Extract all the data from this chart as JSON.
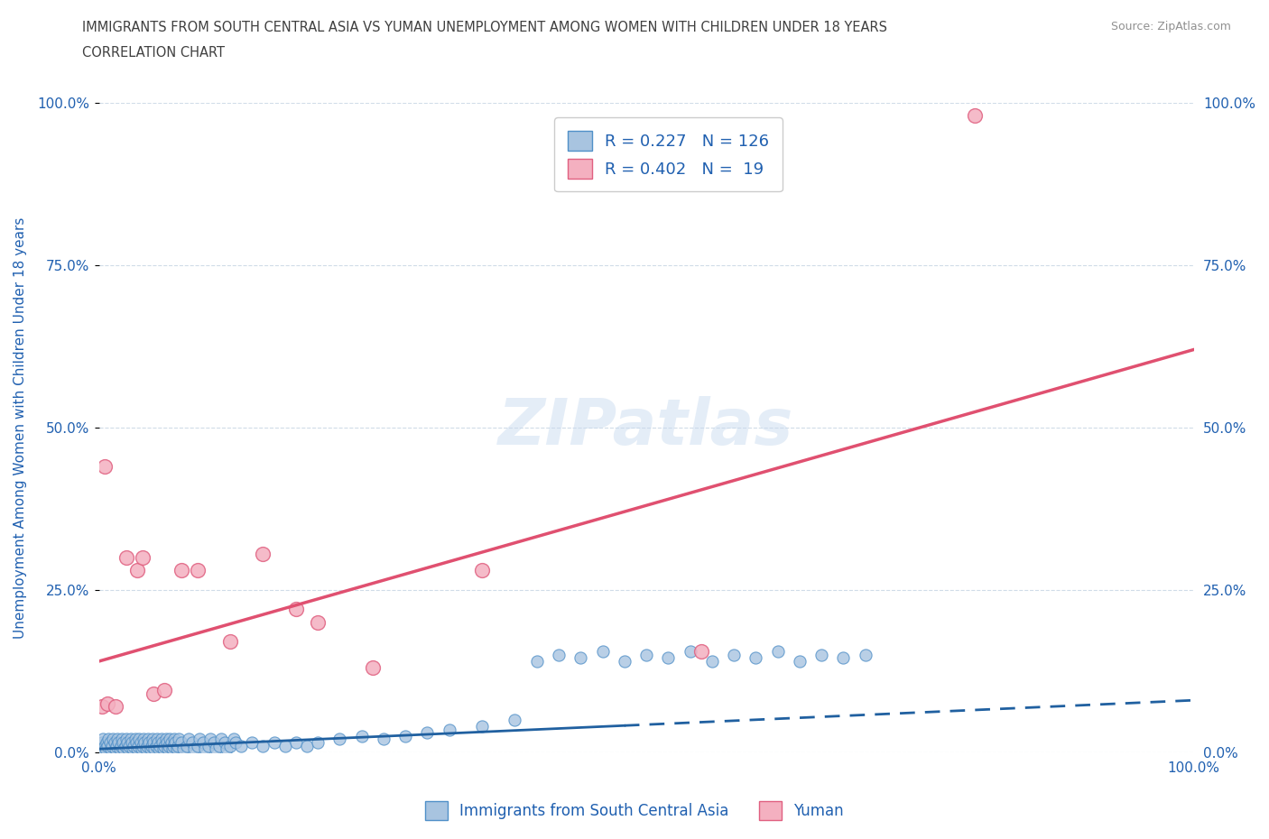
{
  "title_line1": "IMMIGRANTS FROM SOUTH CENTRAL ASIA VS YUMAN UNEMPLOYMENT AMONG WOMEN WITH CHILDREN UNDER 18 YEARS",
  "title_line2": "CORRELATION CHART",
  "source_text": "Source: ZipAtlas.com",
  "ylabel": "Unemployment Among Women with Children Under 18 years",
  "watermark": "ZIPatlas",
  "blue_R": 0.227,
  "blue_N": 126,
  "pink_R": 0.402,
  "pink_N": 19,
  "blue_color": "#a8c4e0",
  "blue_edge_color": "#5090c8",
  "pink_color": "#f4b0c0",
  "pink_edge_color": "#e06080",
  "blue_line_color": "#2060a0",
  "pink_line_color": "#e05070",
  "legend_label_blue": "Immigrants from South Central Asia",
  "legend_label_pink": "Yuman",
  "title_color": "#404040",
  "source_color": "#909090",
  "axis_label_color": "#2060b0",
  "tick_color": "#2060b0",
  "grid_color": "#d0dce8",
  "background_color": "#ffffff",
  "blue_scatter_x": [
    0.1,
    0.2,
    0.3,
    0.4,
    0.5,
    0.6,
    0.7,
    0.8,
    0.9,
    1.0,
    1.1,
    1.2,
    1.3,
    1.4,
    1.5,
    1.6,
    1.7,
    1.8,
    1.9,
    2.0,
    2.1,
    2.2,
    2.3,
    2.4,
    2.5,
    2.6,
    2.7,
    2.8,
    2.9,
    3.0,
    3.1,
    3.2,
    3.3,
    3.4,
    3.5,
    3.6,
    3.7,
    3.8,
    3.9,
    4.0,
    4.1,
    4.2,
    4.3,
    4.4,
    4.5,
    4.6,
    4.7,
    4.8,
    4.9,
    5.0,
    5.1,
    5.2,
    5.3,
    5.4,
    5.5,
    5.6,
    5.7,
    5.8,
    5.9,
    6.0,
    6.1,
    6.2,
    6.3,
    6.4,
    6.5,
    6.6,
    6.7,
    6.8,
    6.9,
    7.0,
    7.1,
    7.2,
    7.3,
    7.5,
    7.7,
    8.0,
    8.2,
    8.5,
    8.7,
    9.0,
    9.2,
    9.5,
    9.7,
    10.0,
    10.2,
    10.5,
    10.7,
    11.0,
    11.2,
    11.5,
    11.7,
    12.0,
    12.3,
    12.5,
    13.0,
    14.0,
    15.0,
    16.0,
    17.0,
    18.0,
    19.0,
    20.0,
    22.0,
    24.0,
    26.0,
    28.0,
    30.0,
    32.0,
    35.0,
    38.0,
    40.0,
    42.0,
    44.0,
    46.0,
    48.0,
    50.0,
    52.0,
    54.0,
    56.0,
    58.0,
    60.0,
    62.0,
    64.0,
    66.0,
    68.0,
    70.0
  ],
  "blue_scatter_y": [
    1.0,
    0.5,
    1.5,
    2.0,
    1.0,
    0.5,
    1.5,
    1.0,
    2.0,
    1.5,
    0.5,
    1.0,
    2.0,
    1.5,
    0.5,
    1.0,
    2.0,
    1.5,
    0.5,
    1.0,
    2.0,
    1.5,
    0.5,
    1.0,
    2.0,
    1.5,
    0.5,
    1.0,
    2.0,
    1.5,
    0.5,
    1.0,
    2.0,
    1.5,
    0.5,
    1.0,
    2.0,
    1.5,
    0.5,
    1.0,
    2.0,
    1.5,
    0.5,
    1.0,
    2.0,
    1.5,
    0.5,
    1.0,
    2.0,
    1.5,
    0.5,
    1.0,
    2.0,
    1.5,
    0.5,
    1.0,
    2.0,
    1.5,
    0.5,
    1.0,
    2.0,
    1.5,
    0.5,
    1.0,
    2.0,
    1.5,
    0.5,
    1.0,
    2.0,
    1.5,
    0.5,
    1.0,
    2.0,
    1.5,
    0.5,
    1.0,
    2.0,
    1.5,
    0.5,
    1.0,
    2.0,
    1.5,
    0.5,
    1.0,
    2.0,
    1.5,
    0.5,
    1.0,
    2.0,
    1.5,
    0.5,
    1.0,
    2.0,
    1.5,
    1.0,
    1.5,
    1.0,
    1.5,
    1.0,
    1.5,
    1.0,
    1.5,
    2.0,
    2.5,
    2.0,
    2.5,
    3.0,
    3.5,
    4.0,
    5.0,
    14.0,
    15.0,
    14.5,
    15.5,
    14.0,
    15.0,
    14.5,
    15.5,
    14.0,
    15.0,
    14.5,
    15.5,
    14.0,
    15.0,
    14.5,
    15.0
  ],
  "pink_scatter_x": [
    0.3,
    0.8,
    2.5,
    3.5,
    5.0,
    6.0,
    7.5,
    9.0,
    15.0,
    18.0,
    25.0,
    35.0,
    55.0,
    80.0,
    0.5,
    1.5,
    4.0,
    12.0,
    20.0
  ],
  "pink_scatter_y": [
    7.0,
    7.5,
    30.0,
    28.0,
    9.0,
    9.5,
    28.0,
    28.0,
    30.5,
    22.0,
    13.0,
    28.0,
    15.5,
    98.0,
    44.0,
    7.0,
    30.0,
    17.0,
    20.0
  ],
  "blue_trend_x": [
    0,
    100
  ],
  "blue_trend_y": [
    0.5,
    8.0
  ],
  "pink_trend_x": [
    0,
    100
  ],
  "pink_trend_y": [
    14.0,
    62.0
  ],
  "blue_dashed_start_x": 48,
  "xlim": [
    0,
    100
  ],
  "ylim": [
    0,
    100
  ],
  "ytick_positions": [
    0,
    25,
    50,
    75,
    100
  ],
  "ytick_labels": [
    "0.0%",
    "25.0%",
    "50.0%",
    "75.0%",
    "100.0%"
  ],
  "xtick_positions": [
    0,
    25,
    50,
    75,
    100
  ],
  "xtick_labels": [
    "0.0%",
    "",
    "",
    "",
    "100.0%"
  ]
}
